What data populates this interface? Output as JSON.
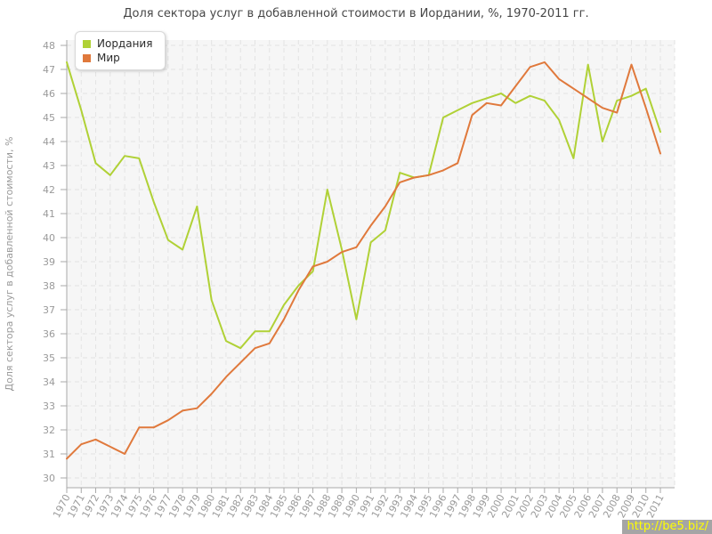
{
  "watermark": "http://be5.biz/",
  "chart_data": {
    "type": "line",
    "title": "Доля сектора услуг в добавленной стоимости в Иордании, %, 1970-2011 гг.",
    "xlabel": "",
    "ylabel": "Доля сектора услуг в добавленной стоимости, %",
    "ylim": [
      30,
      48
    ],
    "y_tick_step": 1,
    "grid": true,
    "legend_position": "top-left",
    "x": [
      1970,
      1971,
      1972,
      1973,
      1974,
      1975,
      1976,
      1977,
      1978,
      1979,
      1980,
      1981,
      1982,
      1983,
      1984,
      1985,
      1986,
      1987,
      1988,
      1989,
      1990,
      1991,
      1992,
      1993,
      1994,
      1995,
      1996,
      1997,
      1998,
      1999,
      2000,
      2001,
      2002,
      2003,
      2004,
      2005,
      2006,
      2007,
      2008,
      2009,
      2010,
      2011
    ],
    "series": [
      {
        "name": "Иордания",
        "color": "#b0d136",
        "values": [
          47.3,
          45.3,
          43.1,
          42.6,
          43.4,
          43.3,
          41.5,
          39.9,
          39.5,
          41.3,
          37.4,
          35.7,
          35.4,
          36.1,
          36.1,
          37.2,
          38.0,
          38.6,
          42.0,
          39.5,
          36.6,
          39.8,
          40.3,
          42.7,
          42.5,
          42.6,
          45.0,
          45.3,
          45.6,
          45.8,
          46.0,
          45.6,
          45.9,
          45.7,
          44.9,
          43.3,
          47.2,
          44.0,
          45.7,
          45.9,
          46.2,
          44.4
        ]
      },
      {
        "name": "Мир",
        "color": "#e0793c",
        "values": [
          30.8,
          31.4,
          31.6,
          31.3,
          31.0,
          32.1,
          32.1,
          32.4,
          32.8,
          32.9,
          33.5,
          34.2,
          34.8,
          35.4,
          35.6,
          36.6,
          37.8,
          38.8,
          39.0,
          39.4,
          39.6,
          40.5,
          41.3,
          42.3,
          42.5,
          42.6,
          42.8,
          43.1,
          45.1,
          45.6,
          45.5,
          46.3,
          47.1,
          47.3,
          46.6,
          46.2,
          45.8,
          45.4,
          45.2,
          47.2,
          45.4,
          43.5
        ]
      }
    ],
    "colors": {
      "plot_bg": "#f6f6f6",
      "grid_line": "#e3e3e3",
      "axis_line": "#a8a8a8",
      "tick_label": "#9a9a9a",
      "title_text": "#474747",
      "watermark_bg": "#a5a5a5",
      "watermark_text": "#ffff00"
    }
  }
}
